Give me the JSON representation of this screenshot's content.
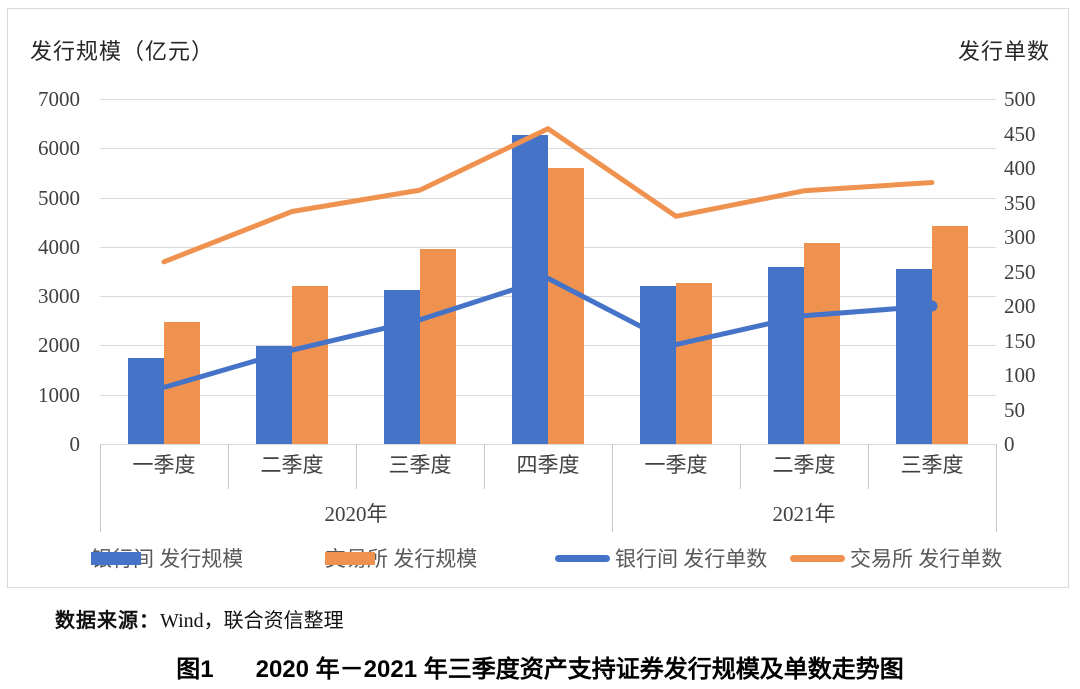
{
  "chart_data": {
    "type": "combo-bar-line-dual-axis",
    "title": "图1 2020 年－2021 年三季度资产支持证券发行规模及单数走势图",
    "categories": [
      "一季度",
      "二季度",
      "三季度",
      "四季度",
      "一季度",
      "二季度",
      "三季度"
    ],
    "year_groups": [
      {
        "label": "2020年",
        "span": 4
      },
      {
        "label": "2021年",
        "span": 3
      }
    ],
    "left_axis": {
      "title": "发行规模（亿元）",
      "min": 0,
      "max": 7000,
      "step": 1000,
      "tick_labels": [
        "7000",
        "6000",
        "5000",
        "4000",
        "3000",
        "2000",
        "1000",
        "0"
      ]
    },
    "right_axis": {
      "title": "发行单数",
      "min": 0,
      "max": 500,
      "step": 50,
      "tick_labels": [
        "500",
        "450",
        "400",
        "350",
        "300",
        "250",
        "200",
        "150",
        "100",
        "50",
        "0"
      ]
    },
    "bar_series": [
      {
        "name": "银行间 发行规模",
        "axis": "left",
        "color": "#4573C7",
        "values": [
          1750,
          1980,
          3130,
          6270,
          3200,
          3600,
          3560
        ]
      },
      {
        "name": "交易所 发行规模",
        "axis": "left",
        "color": "#F0924F",
        "values": [
          2470,
          3200,
          3950,
          5600,
          3270,
          4070,
          4420
        ]
      }
    ],
    "line_series": [
      {
        "name": "银行间 发行单数",
        "axis": "right",
        "color": "#4573C7",
        "end_dot": true,
        "values": [
          82,
          136,
          180,
          240,
          144,
          186,
          200
        ]
      },
      {
        "name": "交易所 发行单数",
        "axis": "right",
        "color": "#F0924F",
        "end_dot": false,
        "values": [
          264,
          337,
          368,
          457,
          330,
          367,
          379
        ]
      }
    ],
    "grid": "horizontal gridlines at each left-axis step of 1000",
    "legend_position": "bottom"
  },
  "legend": {
    "items": [
      {
        "label": "银行间 发行规模",
        "swatch": "bar",
        "color": "#4573C7"
      },
      {
        "label": "交易所 发行规模",
        "swatch": "bar",
        "color": "#F0924F"
      },
      {
        "label": "银行间 发行单数",
        "swatch": "line",
        "color": "#4573C7"
      },
      {
        "label": "交易所 发行单数",
        "swatch": "line",
        "color": "#F0924F"
      }
    ]
  },
  "footer": {
    "source_prefix": "数据来源：",
    "source_text": "Wind，联合资信整理",
    "caption_label": "图1",
    "caption_text": "2020 年－2021 年三季度资产支持证券发行规模及单数走势图"
  }
}
